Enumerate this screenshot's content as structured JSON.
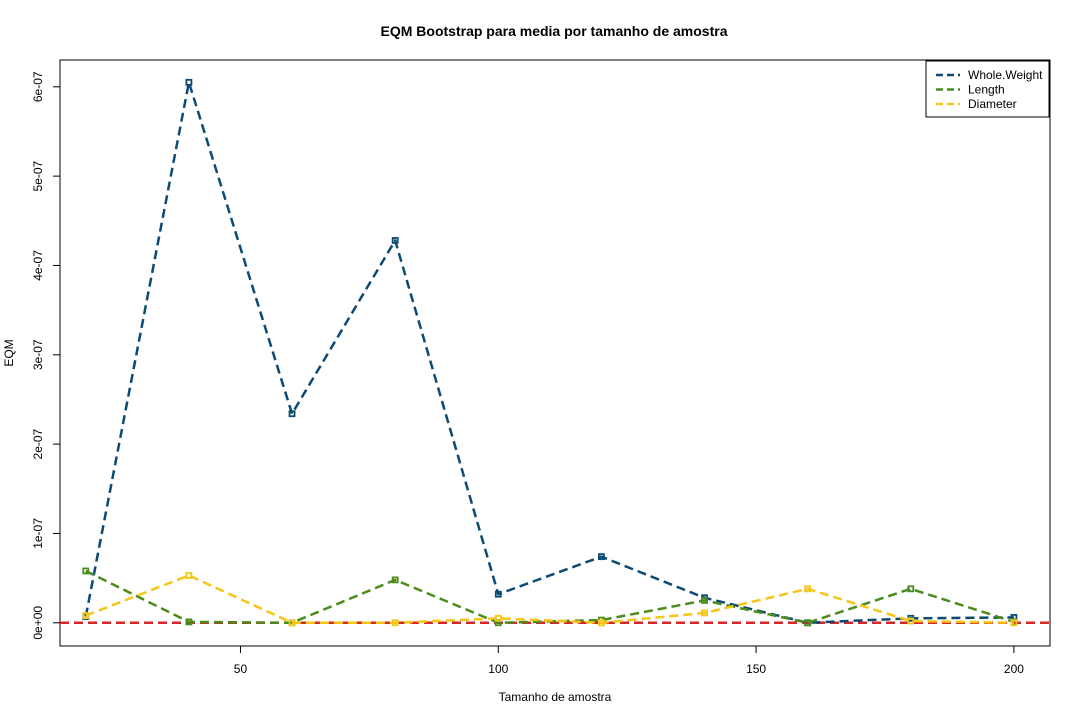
{
  "chart_data": {
    "type": "line",
    "title": "EQM Bootstrap para media por tamanho de amostra",
    "xlabel": "Tamanho de amostra",
    "ylabel": "EQM",
    "xlim": [
      15,
      207
    ],
    "ylim": [
      -2.6e-08,
      6.3e-07
    ],
    "x": [
      20,
      40,
      60,
      80,
      100,
      120,
      140,
      160,
      180,
      200
    ],
    "xticks": [
      50,
      100,
      150,
      200
    ],
    "xtick_labels": [
      "50",
      "100",
      "150",
      "200"
    ],
    "yticks": [
      0,
      1e-07,
      2e-07,
      3e-07,
      4e-07,
      5e-07,
      6e-07
    ],
    "ytick_labels": [
      "0e+00",
      "1e-07",
      "2e-07",
      "3e-07",
      "4e-07",
      "5e-07",
      "6e-07"
    ],
    "grid": false,
    "legend_position": "top-right",
    "reference_line": {
      "y": 0,
      "color": "#d62728",
      "style": "dashed"
    },
    "series": [
      {
        "name": "Whole.Weight",
        "color": "#0d4a73",
        "values": [
          7e-09,
          6.05e-07,
          2.34e-07,
          4.28e-07,
          3.2e-08,
          7.4e-08,
          2.8e-08,
          0,
          5e-09,
          6e-09
        ]
      },
      {
        "name": "Length",
        "color": "#4a8c1c",
        "values": [
          5.8e-08,
          1e-09,
          0,
          4.8e-08,
          0,
          3e-09,
          2.5e-08,
          0,
          3.8e-08,
          1e-09
        ]
      },
      {
        "name": "Diameter",
        "color": "#f5c518",
        "values": [
          8e-09,
          5.3e-08,
          0,
          0,
          5e-09,
          0,
          1.1e-08,
          3.8e-08,
          2e-09,
          0
        ]
      }
    ]
  }
}
